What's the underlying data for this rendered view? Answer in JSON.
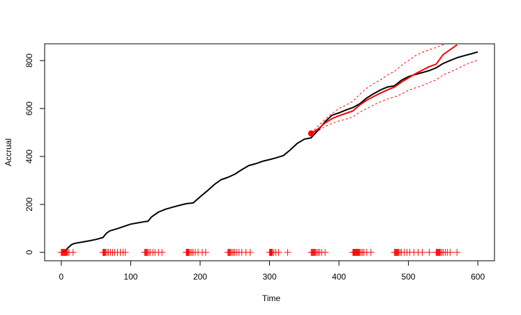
{
  "chart_data": {
    "type": "line",
    "title": "",
    "xlabel": "Time",
    "ylabel": "Accrual",
    "xlim": [
      -24,
      624
    ],
    "ylim": [
      -35,
      870
    ],
    "x_ticks": [
      0,
      100,
      200,
      300,
      400,
      500,
      600
    ],
    "y_ticks": [
      0,
      200,
      400,
      600,
      800
    ],
    "grid": false,
    "legend": "none",
    "colors": {
      "observed": "#000000",
      "predicted": "#ff0000",
      "interval": "#ff0000",
      "marker": "#ff0000",
      "events": "#ff0000"
    },
    "series": [
      {
        "role": "observed",
        "x": [
          0,
          5,
          10,
          15,
          20,
          30,
          40,
          50,
          60,
          65,
          70,
          80,
          90,
          100,
          110,
          120,
          125,
          130,
          140,
          150,
          160,
          170,
          180,
          190,
          200,
          210,
          220,
          230,
          240,
          250,
          260,
          270,
          280,
          290,
          300,
          310,
          320,
          330,
          340,
          350,
          360,
          370,
          380,
          390,
          400,
          410,
          420,
          430,
          440,
          450,
          460,
          470,
          480,
          490,
          500,
          510,
          520,
          530,
          540,
          550,
          560,
          570,
          580,
          590,
          600
        ],
        "y": [
          0,
          5,
          20,
          33,
          38,
          43,
          48,
          54,
          62,
          80,
          90,
          98,
          108,
          118,
          123,
          128,
          130,
          148,
          168,
          180,
          188,
          196,
          203,
          206,
          232,
          256,
          282,
          303,
          313,
          326,
          345,
          362,
          370,
          380,
          387,
          395,
          404,
          428,
          455,
          472,
          478,
          510,
          545,
          572,
          582,
          594,
          604,
          620,
          644,
          662,
          678,
          690,
          695,
          718,
          733,
          742,
          750,
          758,
          770,
          788,
          800,
          812,
          820,
          828,
          836
        ]
      },
      {
        "role": "predicted",
        "x": [
          360,
          370,
          380,
          390,
          400,
          410,
          420,
          430,
          440,
          450,
          460,
          470,
          480,
          490,
          500,
          510,
          520,
          530,
          540,
          550,
          560,
          570
        ],
        "y": [
          496,
          515,
          540,
          558,
          570,
          580,
          590,
          615,
          635,
          650,
          665,
          678,
          690,
          710,
          728,
          745,
          760,
          775,
          785,
          825,
          845,
          866
        ]
      },
      {
        "role": "upper-bound",
        "x": [
          360,
          370,
          380,
          390,
          400,
          410,
          420,
          430,
          440,
          450,
          460,
          470,
          480,
          490,
          500,
          510,
          520,
          530,
          540,
          550,
          560
        ],
        "y": [
          498,
          528,
          555,
          580,
          600,
          614,
          630,
          660,
          685,
          704,
          720,
          740,
          755,
          780,
          800,
          820,
          835,
          845,
          855,
          866,
          880
        ]
      },
      {
        "role": "lower-bound",
        "x": [
          360,
          370,
          380,
          390,
          400,
          410,
          420,
          430,
          440,
          450,
          460,
          470,
          480,
          490,
          500,
          510,
          520,
          530,
          540,
          550,
          560,
          570,
          580,
          590,
          600
        ],
        "y": [
          494,
          507,
          525,
          538,
          548,
          556,
          565,
          585,
          600,
          615,
          628,
          640,
          648,
          660,
          676,
          686,
          696,
          708,
          720,
          740,
          752,
          766,
          780,
          792,
          802
        ]
      }
    ],
    "marker_point": {
      "x": 360,
      "y": 496
    },
    "event_times": [
      0,
      1,
      2,
      3,
      4,
      5,
      6,
      7,
      8,
      9,
      11,
      17,
      60,
      61,
      62,
      63,
      64,
      66,
      68,
      71,
      74,
      77,
      81,
      85,
      89,
      92,
      120,
      121,
      122,
      123,
      124,
      126,
      128,
      132,
      135,
      140,
      145,
      180,
      181,
      182,
      183,
      184,
      186,
      188,
      190,
      193,
      197,
      203,
      208,
      240,
      241,
      242,
      243,
      244,
      246,
      248,
      250,
      253,
      256,
      260,
      266,
      272,
      300,
      301,
      302,
      303,
      304,
      306,
      309,
      313,
      326,
      360,
      361,
      362,
      363,
      364,
      365,
      366,
      368,
      370,
      372,
      375,
      380,
      420,
      421,
      422,
      423,
      424,
      425,
      426,
      427,
      428,
      429,
      430,
      432,
      434,
      436,
      440,
      446,
      480,
      481,
      482,
      483,
      484,
      485,
      486,
      488,
      490,
      494,
      498,
      502,
      508,
      514,
      520,
      530,
      540,
      541,
      542,
      543,
      544,
      545,
      546,
      548,
      550,
      553,
      556,
      560,
      570
    ]
  }
}
